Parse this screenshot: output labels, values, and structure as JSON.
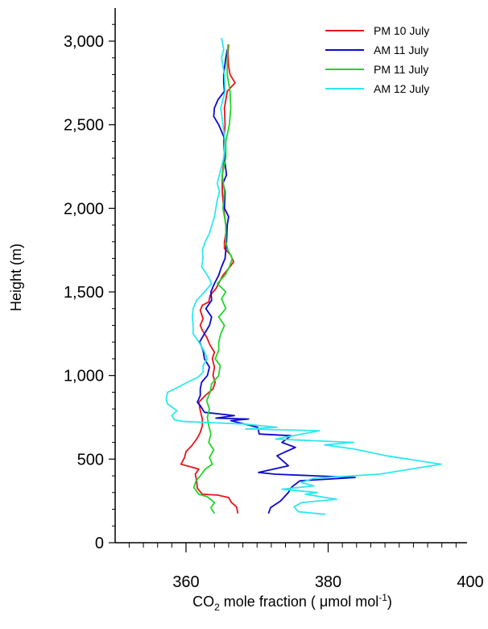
{
  "chart_data": {
    "type": "line",
    "title": "",
    "xlabel": {
      "pre": "CO",
      "sub": "2",
      "mid": " mole fraction ( μmol mol",
      "sup": "-1",
      "post": ")"
    },
    "ylabel": "Height  (m)",
    "xlim": [
      350,
      400
    ],
    "ylim": [
      0,
      3150
    ],
    "x_ticks": [
      360,
      380,
      400
    ],
    "x_tick_labels": [
      "360",
      "380",
      "400"
    ],
    "x_minor_step": 2,
    "y_ticks": [
      0,
      500,
      1000,
      1500,
      2000,
      2500,
      3000
    ],
    "y_tick_labels": [
      "0",
      "500",
      "1,000",
      "1,500",
      "2,000",
      "2,500",
      "3,000"
    ],
    "grid": false,
    "legend_position": "top-right",
    "series": [
      {
        "name": "PM 10 July",
        "color": "#e8141c",
        "points": [
          [
            367.3,
            175
          ],
          [
            367.1,
            215
          ],
          [
            366.4,
            240
          ],
          [
            366.0,
            270
          ],
          [
            364.4,
            285
          ],
          [
            362.3,
            290
          ],
          [
            361.6,
            325
          ],
          [
            361.5,
            370
          ],
          [
            361.3,
            410
          ],
          [
            361.8,
            440
          ],
          [
            359.3,
            470
          ],
          [
            359.8,
            510
          ],
          [
            360.0,
            545
          ],
          [
            360.8,
            580
          ],
          [
            361.5,
            620
          ],
          [
            362.0,
            660
          ],
          [
            362.3,
            700
          ],
          [
            362.3,
            740
          ],
          [
            362.0,
            790
          ],
          [
            361.8,
            840
          ],
          [
            362.7,
            880
          ],
          [
            363.8,
            920
          ],
          [
            364.1,
            960
          ],
          [
            363.8,
            1000
          ],
          [
            364.0,
            1050
          ],
          [
            363.7,
            1100
          ],
          [
            364.0,
            1140
          ],
          [
            363.4,
            1180
          ],
          [
            362.9,
            1230
          ],
          [
            362.3,
            1270
          ],
          [
            362.0,
            1300
          ],
          [
            362.4,
            1340
          ],
          [
            362.0,
            1390
          ],
          [
            362.3,
            1420
          ],
          [
            363.2,
            1440
          ],
          [
            363.4,
            1480
          ],
          [
            364.2,
            1520
          ],
          [
            364.7,
            1560
          ],
          [
            365.2,
            1600
          ],
          [
            366.0,
            1640
          ],
          [
            366.7,
            1680
          ],
          [
            366.3,
            1720
          ],
          [
            365.4,
            1760
          ],
          [
            365.4,
            1800
          ],
          [
            365.6,
            1850
          ],
          [
            365.6,
            1900
          ],
          [
            365.3,
            2000
          ],
          [
            365.1,
            2100
          ],
          [
            365.1,
            2200
          ],
          [
            365.4,
            2300
          ],
          [
            365.3,
            2400
          ],
          [
            365.5,
            2500
          ],
          [
            365.4,
            2600
          ],
          [
            365.8,
            2700
          ],
          [
            366.9,
            2750
          ],
          [
            366.2,
            2800
          ],
          [
            366.0,
            2850
          ],
          [
            365.9,
            2920
          ],
          [
            366.0,
            2980
          ]
        ]
      },
      {
        "name": "AM 11 July",
        "color": "#0a0acf",
        "points": [
          [
            371.6,
            175
          ],
          [
            371.9,
            210
          ],
          [
            373.3,
            250
          ],
          [
            374.4,
            300
          ],
          [
            374.8,
            330
          ],
          [
            376.0,
            370
          ],
          [
            383.8,
            390
          ],
          [
            372.5,
            410
          ],
          [
            370.2,
            420
          ],
          [
            374.4,
            460
          ],
          [
            372.8,
            520
          ],
          [
            373.8,
            540
          ],
          [
            375.4,
            570
          ],
          [
            373.5,
            600
          ],
          [
            374.8,
            640
          ],
          [
            370.3,
            650
          ],
          [
            370.1,
            690
          ],
          [
            366.3,
            730
          ],
          [
            368.8,
            740
          ],
          [
            364.2,
            745
          ],
          [
            366.8,
            760
          ],
          [
            362.6,
            780
          ],
          [
            362.0,
            820
          ],
          [
            361.6,
            840
          ],
          [
            362.0,
            880
          ],
          [
            362.0,
            920
          ],
          [
            362.2,
            960
          ],
          [
            363.0,
            1000
          ],
          [
            363.3,
            1050
          ],
          [
            362.6,
            1100
          ],
          [
            362.4,
            1150
          ],
          [
            361.9,
            1200
          ],
          [
            362.6,
            1250
          ],
          [
            363.3,
            1300
          ],
          [
            363.6,
            1350
          ],
          [
            362.8,
            1400
          ],
          [
            363.6,
            1450
          ],
          [
            363.5,
            1500
          ],
          [
            364.0,
            1550
          ],
          [
            364.6,
            1600
          ],
          [
            365.0,
            1650
          ],
          [
            365.5,
            1700
          ],
          [
            365.6,
            1750
          ],
          [
            365.7,
            1800
          ],
          [
            365.8,
            1900
          ],
          [
            366.0,
            1950
          ],
          [
            365.4,
            2000
          ],
          [
            365.5,
            2100
          ],
          [
            365.2,
            2150
          ],
          [
            365.7,
            2200
          ],
          [
            365.4,
            2300
          ],
          [
            365.6,
            2400
          ],
          [
            364.6,
            2500
          ],
          [
            363.9,
            2550
          ],
          [
            364.0,
            2600
          ],
          [
            364.5,
            2650
          ],
          [
            365.4,
            2700
          ],
          [
            365.3,
            2750
          ],
          [
            365.3,
            2800
          ],
          [
            365.6,
            2900
          ],
          [
            365.8,
            2950
          ]
        ]
      },
      {
        "name": "PM 11 July",
        "color": "#22d42a",
        "points": [
          [
            364.0,
            175
          ],
          [
            363.5,
            210
          ],
          [
            364.0,
            240
          ],
          [
            363.0,
            275
          ],
          [
            361.8,
            290
          ],
          [
            361.1,
            330
          ],
          [
            361.4,
            370
          ],
          [
            362.0,
            400
          ],
          [
            362.7,
            440
          ],
          [
            363.7,
            470
          ],
          [
            363.3,
            510
          ],
          [
            363.9,
            555
          ],
          [
            363.2,
            600
          ],
          [
            363.5,
            650
          ],
          [
            363.2,
            700
          ],
          [
            363.0,
            750
          ],
          [
            363.3,
            800
          ],
          [
            362.9,
            850
          ],
          [
            363.4,
            900
          ],
          [
            363.6,
            950
          ],
          [
            364.6,
            1000
          ],
          [
            364.8,
            1060
          ],
          [
            364.1,
            1100
          ],
          [
            364.6,
            1150
          ],
          [
            364.6,
            1200
          ],
          [
            364.9,
            1250
          ],
          [
            365.4,
            1300
          ],
          [
            364.6,
            1350
          ],
          [
            365.6,
            1400
          ],
          [
            365.0,
            1460
          ],
          [
            365.6,
            1500
          ],
          [
            364.4,
            1550
          ],
          [
            365.5,
            1600
          ],
          [
            366.1,
            1650
          ],
          [
            366.5,
            1700
          ],
          [
            365.9,
            1750
          ],
          [
            365.6,
            1800
          ],
          [
            365.6,
            1900
          ],
          [
            365.2,
            2000
          ],
          [
            365.4,
            2100
          ],
          [
            365.1,
            2200
          ],
          [
            365.6,
            2300
          ],
          [
            365.6,
            2400
          ],
          [
            366.1,
            2500
          ],
          [
            366.3,
            2600
          ],
          [
            366.2,
            2700
          ],
          [
            365.8,
            2800
          ],
          [
            365.8,
            2900
          ],
          [
            365.9,
            2980
          ]
        ]
      },
      {
        "name": "AM 12 July",
        "color": "#2ee8ee",
        "points": [
          [
            379.6,
            170
          ],
          [
            375.8,
            185
          ],
          [
            375.2,
            215
          ],
          [
            376.3,
            240
          ],
          [
            381.2,
            260
          ],
          [
            376.8,
            290
          ],
          [
            378.5,
            300
          ],
          [
            373.5,
            320
          ],
          [
            378.0,
            340
          ],
          [
            376.2,
            360
          ],
          [
            377.9,
            385
          ],
          [
            387.2,
            410
          ],
          [
            395.9,
            470
          ],
          [
            388.2,
            520
          ],
          [
            383.7,
            560
          ],
          [
            379.5,
            585
          ],
          [
            383.6,
            600
          ],
          [
            372.6,
            620
          ],
          [
            378.8,
            670
          ],
          [
            368.4,
            680
          ],
          [
            372.8,
            690
          ],
          [
            368.2,
            710
          ],
          [
            359.7,
            725
          ],
          [
            358.4,
            735
          ],
          [
            358.0,
            760
          ],
          [
            358.7,
            790
          ],
          [
            357.4,
            830
          ],
          [
            357.2,
            860
          ],
          [
            357.4,
            900
          ],
          [
            358.9,
            930
          ],
          [
            360.2,
            960
          ],
          [
            361.7,
            990
          ],
          [
            362.4,
            1020
          ],
          [
            362.4,
            1060
          ],
          [
            363.0,
            1100
          ],
          [
            362.5,
            1150
          ],
          [
            361.8,
            1200
          ],
          [
            361.0,
            1250
          ],
          [
            361.0,
            1300
          ],
          [
            360.9,
            1350
          ],
          [
            361.0,
            1400
          ],
          [
            361.5,
            1450
          ],
          [
            362.6,
            1500
          ],
          [
            363.6,
            1550
          ],
          [
            363.0,
            1600
          ],
          [
            362.2,
            1650
          ],
          [
            362.4,
            1700
          ],
          [
            362.3,
            1750
          ],
          [
            362.7,
            1800
          ],
          [
            363.3,
            1850
          ],
          [
            364.0,
            1950
          ],
          [
            364.4,
            2050
          ],
          [
            364.7,
            2100
          ],
          [
            364.4,
            2150
          ],
          [
            364.7,
            2200
          ],
          [
            365.3,
            2300
          ],
          [
            365.5,
            2400
          ],
          [
            365.2,
            2500
          ],
          [
            364.9,
            2600
          ],
          [
            365.5,
            2700
          ],
          [
            365.4,
            2800
          ],
          [
            365.0,
            2900
          ],
          [
            365.3,
            2950
          ],
          [
            365.0,
            3020
          ]
        ]
      }
    ]
  }
}
